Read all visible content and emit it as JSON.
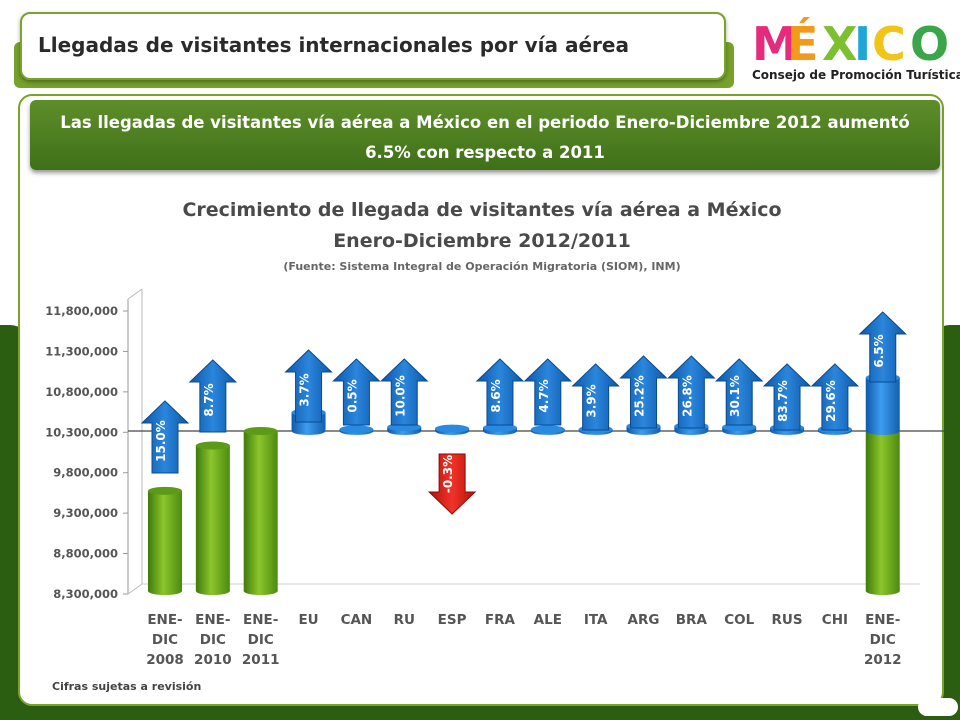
{
  "header": {
    "title": "Llegadas de visitantes internacionales por vía aérea"
  },
  "logo": {
    "letters": [
      "M",
      "É",
      "X",
      "I",
      "C",
      "O"
    ],
    "letter_colors": [
      "#e62b7c",
      "#f29a1a",
      "#7cbf2f",
      "#1fa6d8",
      "#f0c419",
      "#3ba54a"
    ],
    "subtitle": "Consejo de Promoción Turística"
  },
  "banner": {
    "line1": "Las llegadas de visitantes vía aérea  a México en el periodo Enero-Diciembre 2012 aumentó",
    "line2": "6.5% con respecto a 2011"
  },
  "footer": {
    "note": "Cifras sujetas a revisión"
  },
  "colors": {
    "green_bar": "#6ea71a",
    "blue_bar": "#1f7fd0",
    "arrow_blue": "#1b6fc4",
    "arrow_red": "#e0201a",
    "brand_green": "#2b5e11"
  },
  "chart_data": {
    "type": "bar",
    "title": "Crecimiento de llegada de visitantes vía aérea a México",
    "subtitle": "Enero-Diciembre  2012/2011",
    "source": "(Fuente: Sistema Integral de Operación Migratoria (SIOM), INM)",
    "ylim": [
      8300000,
      11800000
    ],
    "yticks": [
      "8,300,000",
      "8,800,000",
      "9,300,000",
      "9,800,000",
      "10,300,000",
      "10,800,000",
      "11,300,000",
      "11,800,000"
    ],
    "ytick_values": [
      8300000,
      8800000,
      9300000,
      9800000,
      10300000,
      10800000,
      11300000,
      11800000
    ],
    "categories": [
      [
        "ENE-",
        "DIC",
        "2008"
      ],
      [
        "ENE-",
        "DIC",
        "2010"
      ],
      [
        "ENE-",
        "DIC",
        "2011"
      ],
      [
        "EU"
      ],
      [
        "CAN"
      ],
      [
        "RU"
      ],
      [
        "ESP"
      ],
      [
        "FRA"
      ],
      [
        "ALE"
      ],
      [
        "ITA"
      ],
      [
        "ARG"
      ],
      [
        "BRA"
      ],
      [
        "COL"
      ],
      [
        "RUS"
      ],
      [
        "CHI"
      ],
      [
        "ENE-",
        "DIC",
        "2012"
      ]
    ],
    "base_bars": [
      {
        "index": 0,
        "value": 9440000
      },
      {
        "index": 1,
        "value": 10000000
      },
      {
        "index": 2,
        "value": 10180000
      },
      {
        "index": 15,
        "value": 10180000
      }
    ],
    "increment_bars": [
      {
        "index": 3,
        "value": 230000
      },
      {
        "index": 4,
        "value": 20000
      },
      {
        "index": 5,
        "value": 50000
      },
      {
        "index": 6,
        "value": -30000
      },
      {
        "index": 7,
        "value": 40000
      },
      {
        "index": 8,
        "value": 20000
      },
      {
        "index": 9,
        "value": 20000
      },
      {
        "index": 10,
        "value": 60000
      },
      {
        "index": 11,
        "value": 60000
      },
      {
        "index": 12,
        "value": 50000
      },
      {
        "index": 13,
        "value": 40000
      },
      {
        "index": 14,
        "value": 20000
      },
      {
        "index": 15,
        "value": 660000
      }
    ],
    "reference_line": 10180000,
    "growth_labels": [
      "15.0%",
      "8.7%",
      "",
      "3.7%",
      "0.5%",
      "10.0%",
      "-0.3%",
      "8.6%",
      "4.7%",
      "3.9%",
      "25.2%",
      "26.8%",
      "30.1%",
      "83.7%",
      "29.6%",
      "6.5%"
    ],
    "arrow_directions": [
      "up",
      "up",
      "",
      "up",
      "up",
      "up",
      "down",
      "up",
      "up",
      "up",
      "up",
      "up",
      "up",
      "up",
      "up",
      "up"
    ]
  }
}
